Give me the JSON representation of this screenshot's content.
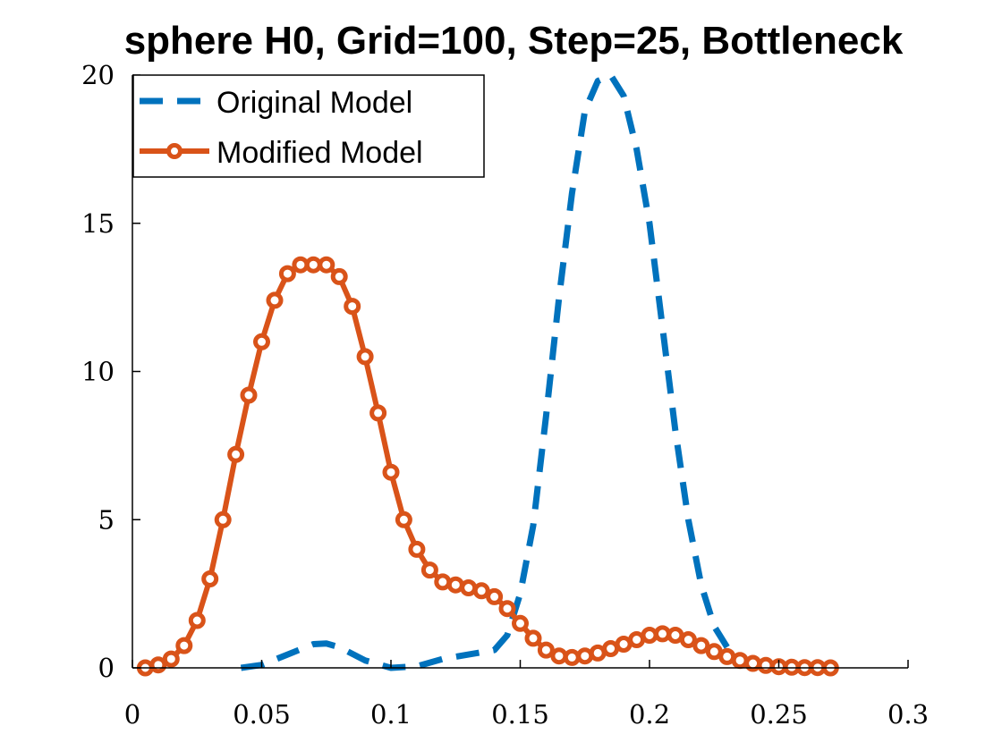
{
  "chart_data": {
    "type": "line",
    "title": "sphere H0, Grid=100, Step=25, Bottleneck",
    "xlabel": "",
    "ylabel": "",
    "xlim": [
      0,
      0.3
    ],
    "ylim": [
      0,
      20
    ],
    "xticks": [
      0,
      0.05,
      0.1,
      0.15,
      0.2,
      0.25,
      0.3
    ],
    "xtick_labels": [
      "0",
      "0.05",
      "0.1",
      "0.15",
      "0.2",
      "0.25",
      "0.3"
    ],
    "yticks": [
      0,
      5,
      10,
      15,
      20
    ],
    "ytick_labels": [
      "0",
      "5",
      "10",
      "15",
      "20"
    ],
    "grid": false,
    "legend": "top-left",
    "series": [
      {
        "name": "Original Model",
        "color": "#0072BD",
        "style": "dashed",
        "x": [
          0.042,
          0.05,
          0.06,
          0.07,
          0.075,
          0.08,
          0.09,
          0.1,
          0.11,
          0.12,
          0.13,
          0.14,
          0.145,
          0.15,
          0.155,
          0.16,
          0.165,
          0.17,
          0.175,
          0.18,
          0.185,
          0.19,
          0.195,
          0.2,
          0.205,
          0.21,
          0.215,
          0.22,
          0.225,
          0.23
        ],
        "y": [
          0.0,
          0.1,
          0.45,
          0.8,
          0.82,
          0.7,
          0.25,
          0.0,
          0.05,
          0.3,
          0.45,
          0.6,
          1.1,
          2.5,
          4.8,
          8.5,
          12.5,
          16.0,
          18.8,
          19.8,
          20.0,
          19.3,
          17.5,
          15.0,
          11.5,
          8.0,
          5.0,
          2.8,
          1.4,
          0.7
        ]
      },
      {
        "name": "Modified Model",
        "color": "#D95319",
        "style": "solid-circle",
        "x": [
          0.005,
          0.01,
          0.015,
          0.02,
          0.025,
          0.03,
          0.035,
          0.04,
          0.045,
          0.05,
          0.055,
          0.06,
          0.065,
          0.07,
          0.075,
          0.08,
          0.085,
          0.09,
          0.095,
          0.1,
          0.105,
          0.11,
          0.115,
          0.12,
          0.125,
          0.13,
          0.135,
          0.14,
          0.145,
          0.15,
          0.155,
          0.16,
          0.165,
          0.17,
          0.175,
          0.18,
          0.185,
          0.19,
          0.195,
          0.2,
          0.205,
          0.21,
          0.215,
          0.22,
          0.225,
          0.23,
          0.235,
          0.24,
          0.245,
          0.25,
          0.255,
          0.26,
          0.265,
          0.27
        ],
        "y": [
          0.0,
          0.1,
          0.3,
          0.75,
          1.6,
          3.0,
          5.0,
          7.2,
          9.2,
          11.0,
          12.4,
          13.3,
          13.6,
          13.6,
          13.6,
          13.2,
          12.2,
          10.5,
          8.6,
          6.6,
          5.0,
          4.0,
          3.3,
          2.9,
          2.8,
          2.7,
          2.6,
          2.4,
          2.0,
          1.5,
          1.0,
          0.6,
          0.4,
          0.35,
          0.4,
          0.5,
          0.65,
          0.8,
          0.95,
          1.1,
          1.15,
          1.1,
          0.95,
          0.75,
          0.55,
          0.38,
          0.25,
          0.15,
          0.08,
          0.04,
          0.02,
          0.01,
          0.01,
          0.0
        ]
      }
    ]
  }
}
